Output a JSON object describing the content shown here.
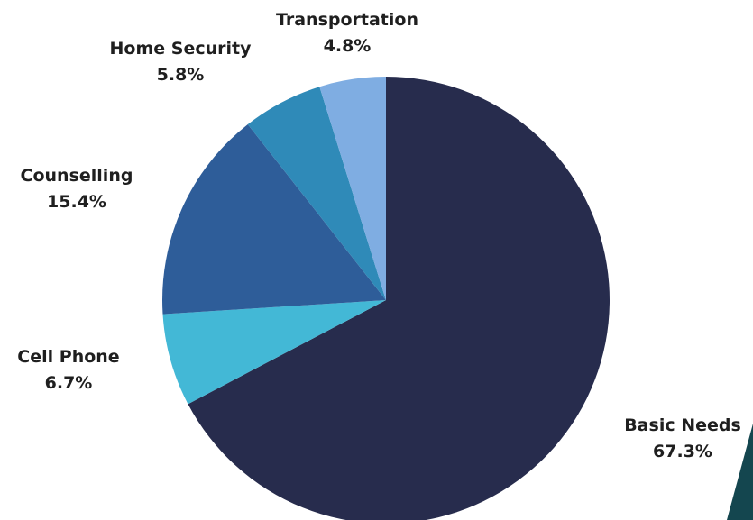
{
  "chart_data": {
    "type": "pie",
    "start_angle_deg": 0,
    "direction": "clockwise",
    "slices": [
      {
        "name": "Basic Needs",
        "value": 67.3,
        "label": "67.3%",
        "color": "#272c4d"
      },
      {
        "name": "Cell Phone",
        "value": 6.7,
        "label": "6.7%",
        "color": "#43b8d6"
      },
      {
        "name": "Counselling",
        "value": 15.4,
        "label": "15.4%",
        "color": "#2e5d99"
      },
      {
        "name": "Home Security",
        "value": 5.8,
        "label": "5.8%",
        "color": "#2f8ab8"
      },
      {
        "name": "Transportation",
        "value": 4.8,
        "label": "4.8%",
        "color": "#7fade2"
      }
    ]
  },
  "decoration": {
    "corner_color": "#14464f"
  }
}
